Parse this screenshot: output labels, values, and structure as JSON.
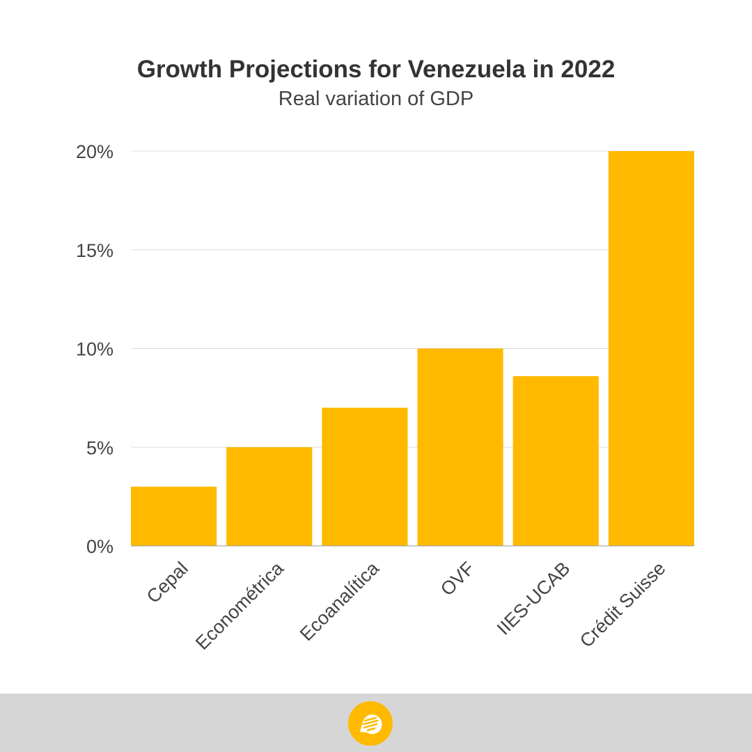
{
  "header": {
    "title": "Growth Projections for Venezuela in 2022",
    "subtitle": "Real variation of GDP"
  },
  "chart_data": {
    "type": "bar",
    "title": "Growth Projections for Venezuela in 2022",
    "subtitle": "Real variation of GDP",
    "xlabel": "",
    "ylabel": "",
    "categories": [
      "Cepal",
      "Econométrica",
      "Ecoanalítica",
      "OVF",
      "IIES-UCAB",
      "Crédit Suisse"
    ],
    "values": [
      3,
      5,
      7,
      10,
      8.6,
      20
    ],
    "ylim": [
      0,
      20
    ],
    "yticks": [
      0,
      5,
      10,
      15,
      20
    ],
    "ytick_labels": [
      "0%",
      "5%",
      "10%",
      "15%",
      "20%"
    ],
    "grid": true,
    "legend": "none",
    "bar_color": "#FFBA00"
  },
  "footer": {
    "background": "#D6D6D6",
    "logo_icon": "speech-bubble-lines-icon",
    "logo_color": "#FFBA00"
  }
}
